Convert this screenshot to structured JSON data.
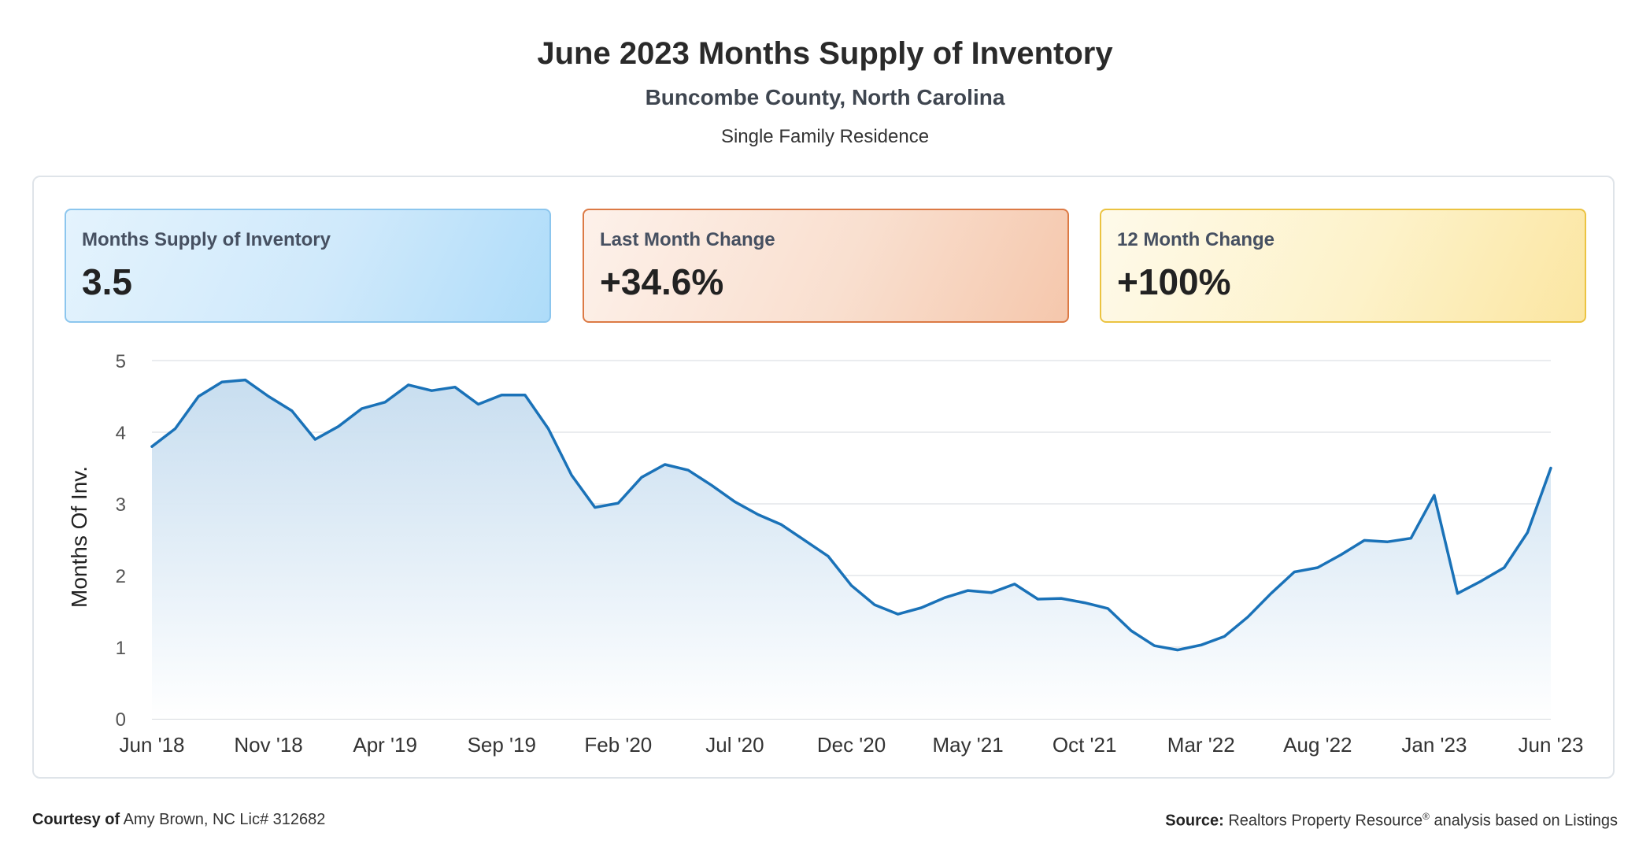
{
  "header": {
    "title": "June 2023 Months Supply of Inventory",
    "subtitle": "Buncombe County, North Carolina",
    "property_type": "Single Family Residence"
  },
  "cards": [
    {
      "label": "Months Supply of Inventory",
      "value": "3.5",
      "accent": "#8cc6ee"
    },
    {
      "label": "Last Month Change",
      "value": "+34.6%",
      "accent": "#dc7a45"
    },
    {
      "label": "12 Month Change",
      "value": "+100%",
      "accent": "#ebc341"
    }
  ],
  "footer": {
    "courtesy_label": "Courtesy of",
    "courtesy_text": "Amy Brown, NC Lic# 312682",
    "source_label": "Source:",
    "source_text": "Realtors Property Resource",
    "source_mark": "®",
    "source_suffix": "analysis based on Listings"
  },
  "chart_data": {
    "type": "area",
    "title": "",
    "ylabel": "Months Of Inv.",
    "xlabel": "",
    "ylim": [
      0,
      5
    ],
    "yticks": [
      0,
      1,
      2,
      3,
      4,
      5
    ],
    "grid": true,
    "line_color": "#1a72b8",
    "fill_color": "#c5dcef",
    "x_tick_labels": [
      "Jun '18",
      "Nov '18",
      "Apr '19",
      "Sep '19",
      "Feb '20",
      "Jul '20",
      "Dec '20",
      "May '21",
      "Oct '21",
      "Mar '22",
      "Aug '22",
      "Jan '23",
      "Jun '23"
    ],
    "x": [
      "Jun '18",
      "Jul '18",
      "Aug '18",
      "Sep '18",
      "Oct '18",
      "Nov '18",
      "Dec '18",
      "Jan '19",
      "Feb '19",
      "Mar '19",
      "Apr '19",
      "May '19",
      "Jun '19",
      "Jul '19",
      "Aug '19",
      "Sep '19",
      "Oct '19",
      "Nov '19",
      "Dec '19",
      "Jan '20",
      "Feb '20",
      "Mar '20",
      "Apr '20",
      "May '20",
      "Jun '20",
      "Jul '20",
      "Aug '20",
      "Sep '20",
      "Oct '20",
      "Nov '20",
      "Dec '20",
      "Jan '21",
      "Feb '21",
      "Mar '21",
      "Apr '21",
      "May '21",
      "Jun '21",
      "Jul '21",
      "Aug '21",
      "Sep '21",
      "Oct '21",
      "Nov '21",
      "Dec '21",
      "Jan '22",
      "Feb '22",
      "Mar '22",
      "Apr '22",
      "May '22",
      "Jun '22",
      "Jul '22",
      "Aug '22",
      "Sep '22",
      "Oct '22",
      "Nov '22",
      "Dec '22",
      "Jan '23",
      "Feb '23",
      "Mar '23",
      "Apr '23",
      "May '23",
      "Jun '23"
    ],
    "series": [
      {
        "name": "",
        "values": [
          3.8,
          4.05,
          4.5,
          4.7,
          4.73,
          4.5,
          4.3,
          3.9,
          4.08,
          4.33,
          4.42,
          4.66,
          4.58,
          4.63,
          4.39,
          4.52,
          4.52,
          4.05,
          3.4,
          2.95,
          3.01,
          3.37,
          3.55,
          3.47,
          3.26,
          3.03,
          2.85,
          2.71,
          2.49,
          2.27,
          1.86,
          1.59,
          1.46,
          1.55,
          1.69,
          1.79,
          1.76,
          1.88,
          1.67,
          1.68,
          1.62,
          1.54,
          1.23,
          1.02,
          0.96,
          1.03,
          1.15,
          1.42,
          1.75,
          2.05,
          2.11,
          2.29,
          2.49,
          2.47,
          2.52,
          3.12,
          1.75,
          1.92,
          2.11,
          2.6,
          3.5
        ]
      }
    ]
  }
}
